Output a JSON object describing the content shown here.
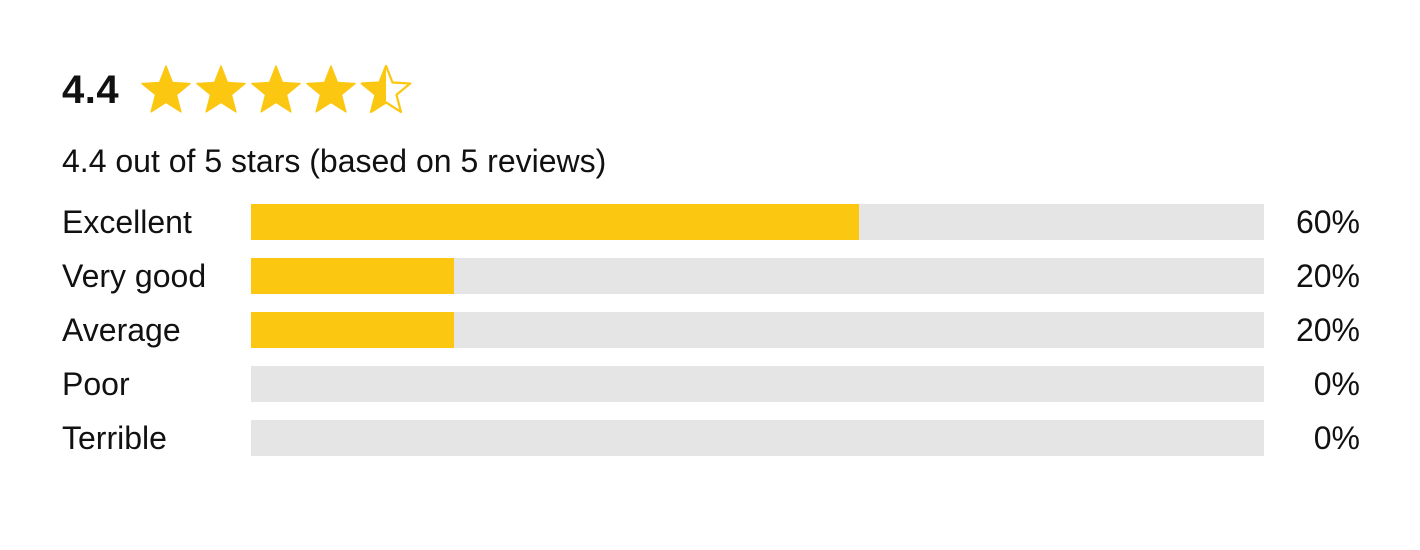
{
  "rating": {
    "score_text": "4.4",
    "value": 4.4,
    "max": 5,
    "summary": "4.4 out of 5 stars (based on 5 reviews)",
    "star_fill": [
      1,
      1,
      1,
      1,
      0.5
    ],
    "star_icon": "star-icon",
    "accent_color": "#fcc711",
    "track_color": "#e5e5e5"
  },
  "distribution": [
    {
      "label": "Excellent",
      "percent_text": "60%",
      "fraction": 0.6
    },
    {
      "label": "Very good",
      "percent_text": "20%",
      "fraction": 0.2
    },
    {
      "label": "Average",
      "percent_text": "20%",
      "fraction": 0.2
    },
    {
      "label": "Poor",
      "percent_text": "0%",
      "fraction": 0.0
    },
    {
      "label": "Terrible",
      "percent_text": "0%",
      "fraction": 0.0
    }
  ]
}
